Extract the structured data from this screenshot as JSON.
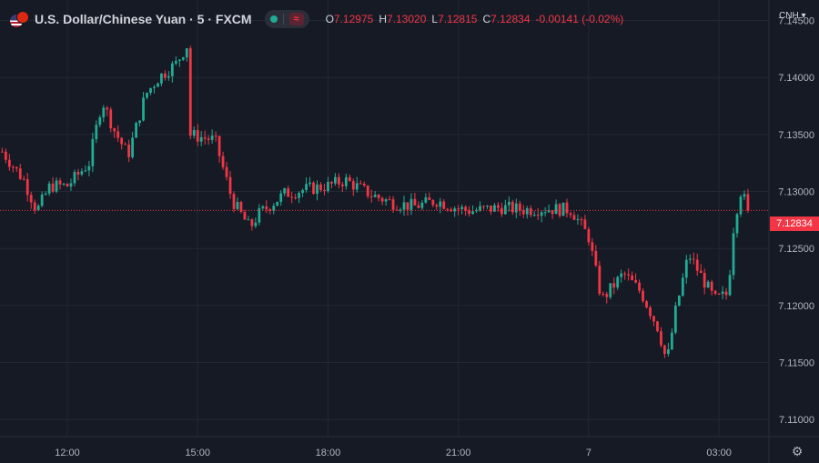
{
  "header": {
    "title": "U.S. Dollar/Chinese Yuan · 5 · FXCM",
    "ohlc": [
      {
        "label": "O",
        "value": "7.12975"
      },
      {
        "label": "H",
        "value": "7.13020"
      },
      {
        "label": "L",
        "value": "7.12815"
      },
      {
        "label": "C",
        "value": "7.12834"
      },
      {
        "label": "",
        "value": "-0.00141 (-0.02%)"
      }
    ],
    "currency_label": "CNH ▾"
  },
  "icons": {
    "symbol": "usd-cny-flag-icon",
    "market_status": "market-open-dot-icon",
    "signal": "wave-signal-icon",
    "settings": "gear-icon"
  },
  "colors": {
    "background": "#161a25",
    "up": "#22ab94",
    "down": "#f23645",
    "grid": "#232734",
    "text": "#b2b5be"
  },
  "chart_data": {
    "type": "candlestick",
    "interval": "5",
    "grid": true,
    "ylim": [
      7.1085,
      7.1468
    ],
    "y_ticks": [
      "7.11000",
      "7.11500",
      "7.12000",
      "7.12500",
      "7.13000",
      "7.13500",
      "7.14000",
      "7.14500"
    ],
    "y_tick_values": [
      7.11,
      7.115,
      7.12,
      7.125,
      7.13,
      7.135,
      7.14,
      7.145
    ],
    "x_ticks": [
      "12:00",
      "15:00",
      "18:00",
      "21:00",
      "7",
      "03:00"
    ],
    "x_tick_hours": [
      12,
      15,
      18,
      21,
      24,
      27
    ],
    "x_range_hours": [
      10.45,
      28.15
    ],
    "last_price": 7.12834,
    "last_price_label": "7.12834",
    "anchors": [
      [
        10.5,
        7.1335
      ],
      [
        11.0,
        7.131
      ],
      [
        11.3,
        7.1283
      ],
      [
        11.6,
        7.1305
      ],
      [
        12.0,
        7.1305
      ],
      [
        12.5,
        7.1325
      ],
      [
        12.8,
        7.138
      ],
      [
        13.1,
        7.1352
      ],
      [
        13.4,
        7.1332
      ],
      [
        13.8,
        7.1385
      ],
      [
        14.1,
        7.14
      ],
      [
        14.5,
        7.1412
      ],
      [
        14.75,
        7.1428
      ],
      [
        14.8,
        7.135
      ],
      [
        15.4,
        7.1345
      ],
      [
        15.8,
        7.1292
      ],
      [
        16.2,
        7.1268
      ],
      [
        16.4,
        7.128
      ],
      [
        17.0,
        7.1298
      ],
      [
        17.5,
        7.1302
      ],
      [
        18.0,
        7.1305
      ],
      [
        18.4,
        7.131
      ],
      [
        19.0,
        7.1297
      ],
      [
        19.5,
        7.129
      ],
      [
        20.0,
        7.1287
      ],
      [
        20.5,
        7.1292
      ],
      [
        21.0,
        7.1285
      ],
      [
        21.3,
        7.1283
      ],
      [
        22.0,
        7.1286
      ],
      [
        22.5,
        7.1284
      ],
      [
        23.0,
        7.1285
      ],
      [
        23.6,
        7.1284
      ],
      [
        24.0,
        7.126
      ],
      [
        24.3,
        7.1205
      ],
      [
        24.8,
        7.1228
      ],
      [
        25.2,
        7.1212
      ],
      [
        25.6,
        7.118
      ],
      [
        25.8,
        7.115
      ],
      [
        26.0,
        7.1195
      ],
      [
        26.3,
        7.1245
      ],
      [
        26.6,
        7.1225
      ],
      [
        26.9,
        7.1205
      ],
      [
        27.2,
        7.121
      ],
      [
        27.35,
        7.1275
      ],
      [
        27.5,
        7.13
      ],
      [
        27.7,
        7.1283
      ]
    ]
  }
}
